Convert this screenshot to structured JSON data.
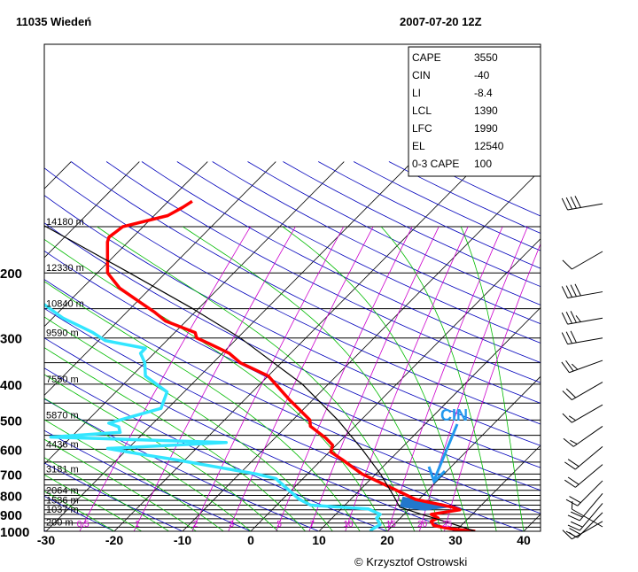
{
  "header": {
    "station": "11035 Wiedeń",
    "datetime": "2007-07-20 12Z"
  },
  "indices": [
    {
      "name": "CAPE",
      "value": "3550"
    },
    {
      "name": "CIN",
      "value": "-40"
    },
    {
      "name": "LI",
      "value": "-8.4"
    },
    {
      "name": "LCL",
      "value": "1390"
    },
    {
      "name": "LFC",
      "value": "1990"
    },
    {
      "name": "EL",
      "value": "12540"
    },
    {
      "name": "0-3 CAPE",
      "value": "100"
    }
  ],
  "annotation": {
    "cin_label": "CIN"
  },
  "credit": "© Krzysztof Ostrowski",
  "colors": {
    "temperature": "#ff0000",
    "dewpoint": "#33e6ff",
    "parcel": "#000000",
    "isotherm": "#000000",
    "dry_adiabat": "#0000bb",
    "moist_adiabat": "#00bb00",
    "mixing_ratio": "#cc00cc",
    "cin_fill": "#2277cc",
    "cin_label": "#2299ee"
  },
  "chart_data": {
    "type": "skew-t",
    "title": "11035 Wiedeń 2007-07-20 12Z",
    "x_axis": {
      "label": "",
      "ticks": [
        -30,
        -20,
        -10,
        0,
        10,
        20,
        30,
        40
      ],
      "range": [
        -32,
        42
      ]
    },
    "y_axis": {
      "label": "",
      "scale": "log",
      "ticks": [
        200,
        300,
        400,
        500,
        600,
        700,
        800,
        900,
        1000
      ]
    },
    "height_labels": [
      {
        "p": 150,
        "label": "14180 m"
      },
      {
        "p": 200,
        "label": "12330 m"
      },
      {
        "p": 250,
        "label": "10840 m"
      },
      {
        "p": 300,
        "label": "9590 m"
      },
      {
        "p": 400,
        "label": "7550 m"
      },
      {
        "p": 500,
        "label": "5870 m"
      },
      {
        "p": 600,
        "label": "4436 m"
      },
      {
        "p": 700,
        "label": "3181 m"
      },
      {
        "p": 800,
        "label": "2064 m"
      },
      {
        "p": 850,
        "label": "1536 m"
      },
      {
        "p": 900,
        "label": "1037 m"
      },
      {
        "p": 975,
        "label": "200 m"
      }
    ],
    "mixing_ratio_labels": [
      "0.5",
      "1",
      "2",
      "3",
      "5",
      "7",
      "10",
      "15",
      "20",
      "25"
    ],
    "series": [
      {
        "name": "temperature",
        "points": [
          [
            1000,
            32.9
          ],
          [
            985,
            29.0
          ],
          [
            965,
            26.0
          ],
          [
            940,
            25.0
          ],
          [
            920,
            25.5
          ],
          [
            900,
            24.0
          ],
          [
            875,
            27.5
          ],
          [
            860,
            26.0
          ],
          [
            820,
            19.5
          ],
          [
            760,
            14.0
          ],
          [
            700,
            8.0
          ],
          [
            640,
            3.0
          ],
          [
            610,
            0.2
          ],
          [
            585,
            -0.5
          ],
          [
            560,
            -2.5
          ],
          [
            520,
            -6.5
          ],
          [
            500,
            -7.5
          ],
          [
            440,
            -13.5
          ],
          [
            380,
            -20.0
          ],
          [
            350,
            -26.0
          ],
          [
            330,
            -29.0
          ],
          [
            310,
            -33.5
          ],
          [
            300,
            -36.0
          ],
          [
            290,
            -37.0
          ],
          [
            270,
            -43.0
          ],
          [
            255,
            -46.0
          ],
          [
            240,
            -49.5
          ],
          [
            220,
            -54.5
          ],
          [
            200,
            -58.5
          ],
          [
            165,
            -63.0
          ],
          [
            160,
            -63.5
          ],
          [
            150,
            -63.0
          ],
          [
            140,
            -58.0
          ],
          [
            133,
            -57.0
          ],
          [
            128,
            -56.5
          ]
        ]
      },
      {
        "name": "dewpoint",
        "points": [
          [
            1000,
            17.5
          ],
          [
            985,
            17.5
          ],
          [
            960,
            18.0
          ],
          [
            920,
            16.5
          ],
          [
            900,
            16.5
          ],
          [
            870,
            14.0
          ],
          [
            850,
            5.0
          ],
          [
            820,
            2.5
          ],
          [
            780,
            0.0
          ],
          [
            720,
            -4.0
          ],
          [
            700,
            -7.5
          ],
          [
            640,
            -21.5
          ],
          [
            620,
            -27.0
          ],
          [
            597,
            -33.0
          ],
          [
            575,
            -16.5
          ],
          [
            556,
            -43.0
          ],
          [
            540,
            -33.5
          ],
          [
            522,
            -34.5
          ],
          [
            510,
            -36.5
          ],
          [
            465,
            -31.0
          ],
          [
            420,
            -32.5
          ],
          [
            380,
            -38.0
          ],
          [
            350,
            -40.0
          ],
          [
            330,
            -42.0
          ],
          [
            320,
            -42.0
          ],
          [
            305,
            -49.0
          ],
          [
            290,
            -52.0
          ],
          [
            280,
            -54.5
          ],
          [
            265,
            -58.5
          ],
          [
            240,
            -64.0
          ],
          [
            210,
            -71.0
          ],
          [
            180,
            -77.5
          ],
          [
            160,
            -82.0
          ],
          [
            150,
            -86.0
          ],
          [
            147,
            -86.0
          ],
          [
            140,
            -83.0
          ],
          [
            128,
            -81.5
          ]
        ]
      },
      {
        "name": "parcel",
        "points": [
          [
            1000,
            32.9
          ],
          [
            950,
            28.0
          ],
          [
            900,
            22.6
          ],
          [
            860,
            18.3
          ],
          [
            860,
            18.3
          ],
          [
            800,
            15.7
          ],
          [
            700,
            10.7
          ],
          [
            600,
            4.4
          ],
          [
            500,
            -3.4
          ],
          [
            400,
            -13.8
          ],
          [
            300,
            -29.6
          ],
          [
            250,
            -40.8
          ],
          [
            200,
            -55.3
          ],
          [
            150,
            -74.2
          ],
          [
            128,
            -85.0
          ]
        ]
      }
    ],
    "wind_barbs": [
      {
        "p": 130,
        "direction": 260,
        "speed_kt": 40
      },
      {
        "p": 175,
        "direction": 240,
        "speed_kt": 10
      },
      {
        "p": 225,
        "direction": 260,
        "speed_kt": 40
      },
      {
        "p": 265,
        "direction": 260,
        "speed_kt": 35
      },
      {
        "p": 300,
        "direction": 260,
        "speed_kt": 30
      },
      {
        "p": 345,
        "direction": 250,
        "speed_kt": 25
      },
      {
        "p": 395,
        "direction": 240,
        "speed_kt": 20
      },
      {
        "p": 455,
        "direction": 240,
        "speed_kt": 15
      },
      {
        "p": 520,
        "direction": 235,
        "speed_kt": 15
      },
      {
        "p": 590,
        "direction": 230,
        "speed_kt": 20
      },
      {
        "p": 660,
        "direction": 230,
        "speed_kt": 20
      },
      {
        "p": 730,
        "direction": 225,
        "speed_kt": 20
      },
      {
        "p": 790,
        "direction": 220,
        "speed_kt": 20
      },
      {
        "p": 840,
        "direction": 220,
        "speed_kt": 20
      },
      {
        "p": 890,
        "direction": 225,
        "speed_kt": 20
      },
      {
        "p": 940,
        "direction": 240,
        "speed_kt": 15
      },
      {
        "p": 1000,
        "direction": 300,
        "speed_kt": 5
      }
    ]
  }
}
